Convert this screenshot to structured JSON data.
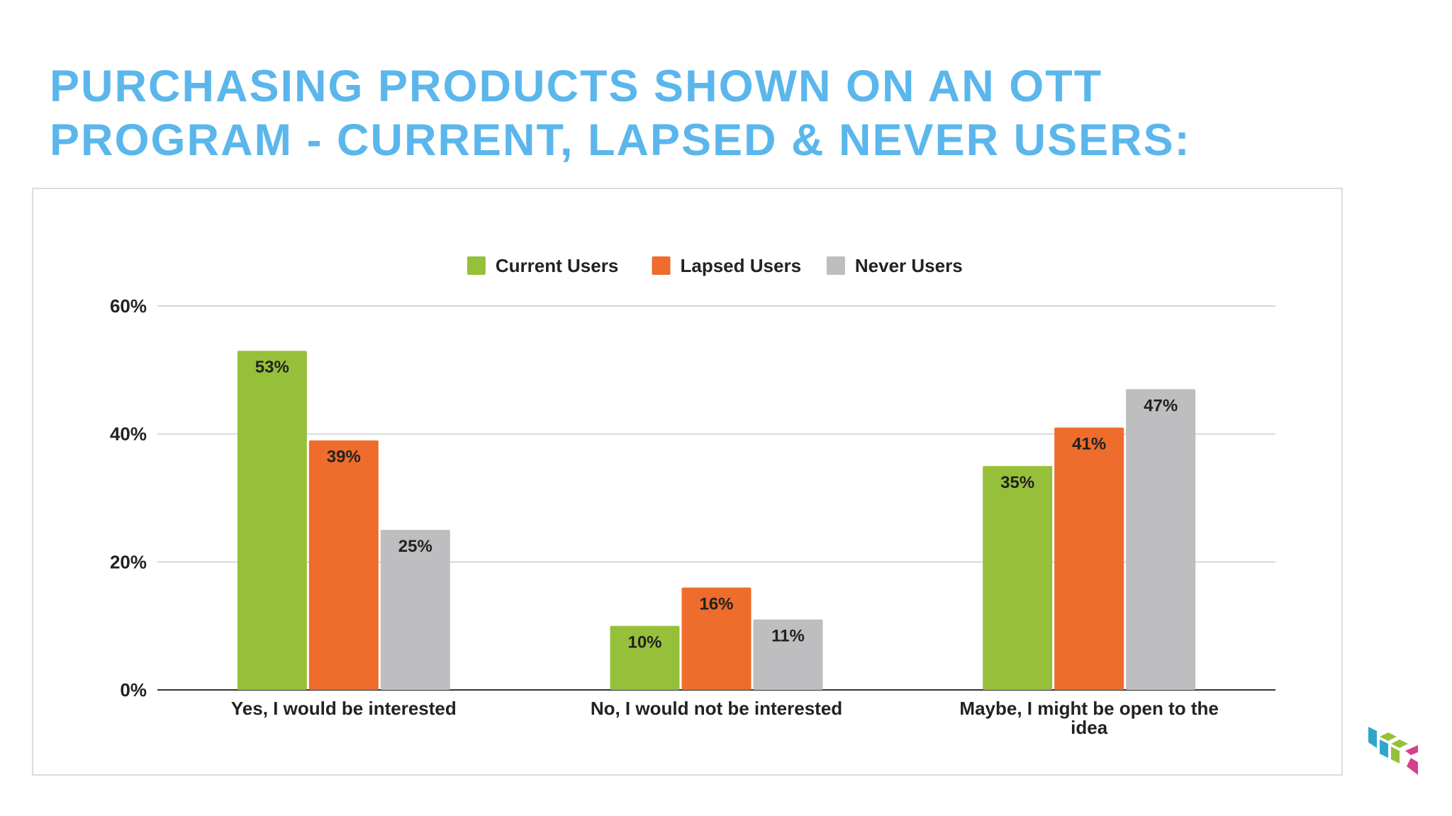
{
  "slide": {
    "title_line1": "PURCHASING PRODUCTS SHOWN ON AN OTT",
    "title_line2": "PROGRAM - CURRENT, LAPSED & NEVER USERS:",
    "title_color": "#5bb6ec"
  },
  "chart_data": {
    "type": "bar",
    "title": "",
    "xlabel": "",
    "ylabel": "",
    "categories": [
      "Yes, I would be interested",
      "No, I would not be interested",
      "Maybe, I might be open to the idea"
    ],
    "series": [
      {
        "name": "Current Users",
        "color": "#97c03a",
        "values": [
          53,
          10,
          35
        ],
        "labels": [
          "53%",
          "10%",
          "35%"
        ]
      },
      {
        "name": "Lapsed Users",
        "color": "#ee6c2c",
        "values": [
          39,
          16,
          41
        ],
        "labels": [
          "39%",
          "16%",
          "41%"
        ]
      },
      {
        "name": "Never Users",
        "color": "#bebdbf",
        "values": [
          25,
          11,
          47
        ],
        "labels": [
          "25%",
          "11%",
          "47%"
        ]
      }
    ],
    "ylim": [
      0,
      60
    ],
    "yticks": [
      0,
      20,
      40,
      60
    ],
    "ytick_labels": [
      "0%",
      "20%",
      "40%",
      "60%"
    ],
    "grid": true,
    "legend_position": "top-center"
  },
  "logo": {
    "icon": "cube-logo-icon",
    "colors": [
      "#2fa6c8",
      "#97c03a",
      "#d63f8c"
    ]
  }
}
